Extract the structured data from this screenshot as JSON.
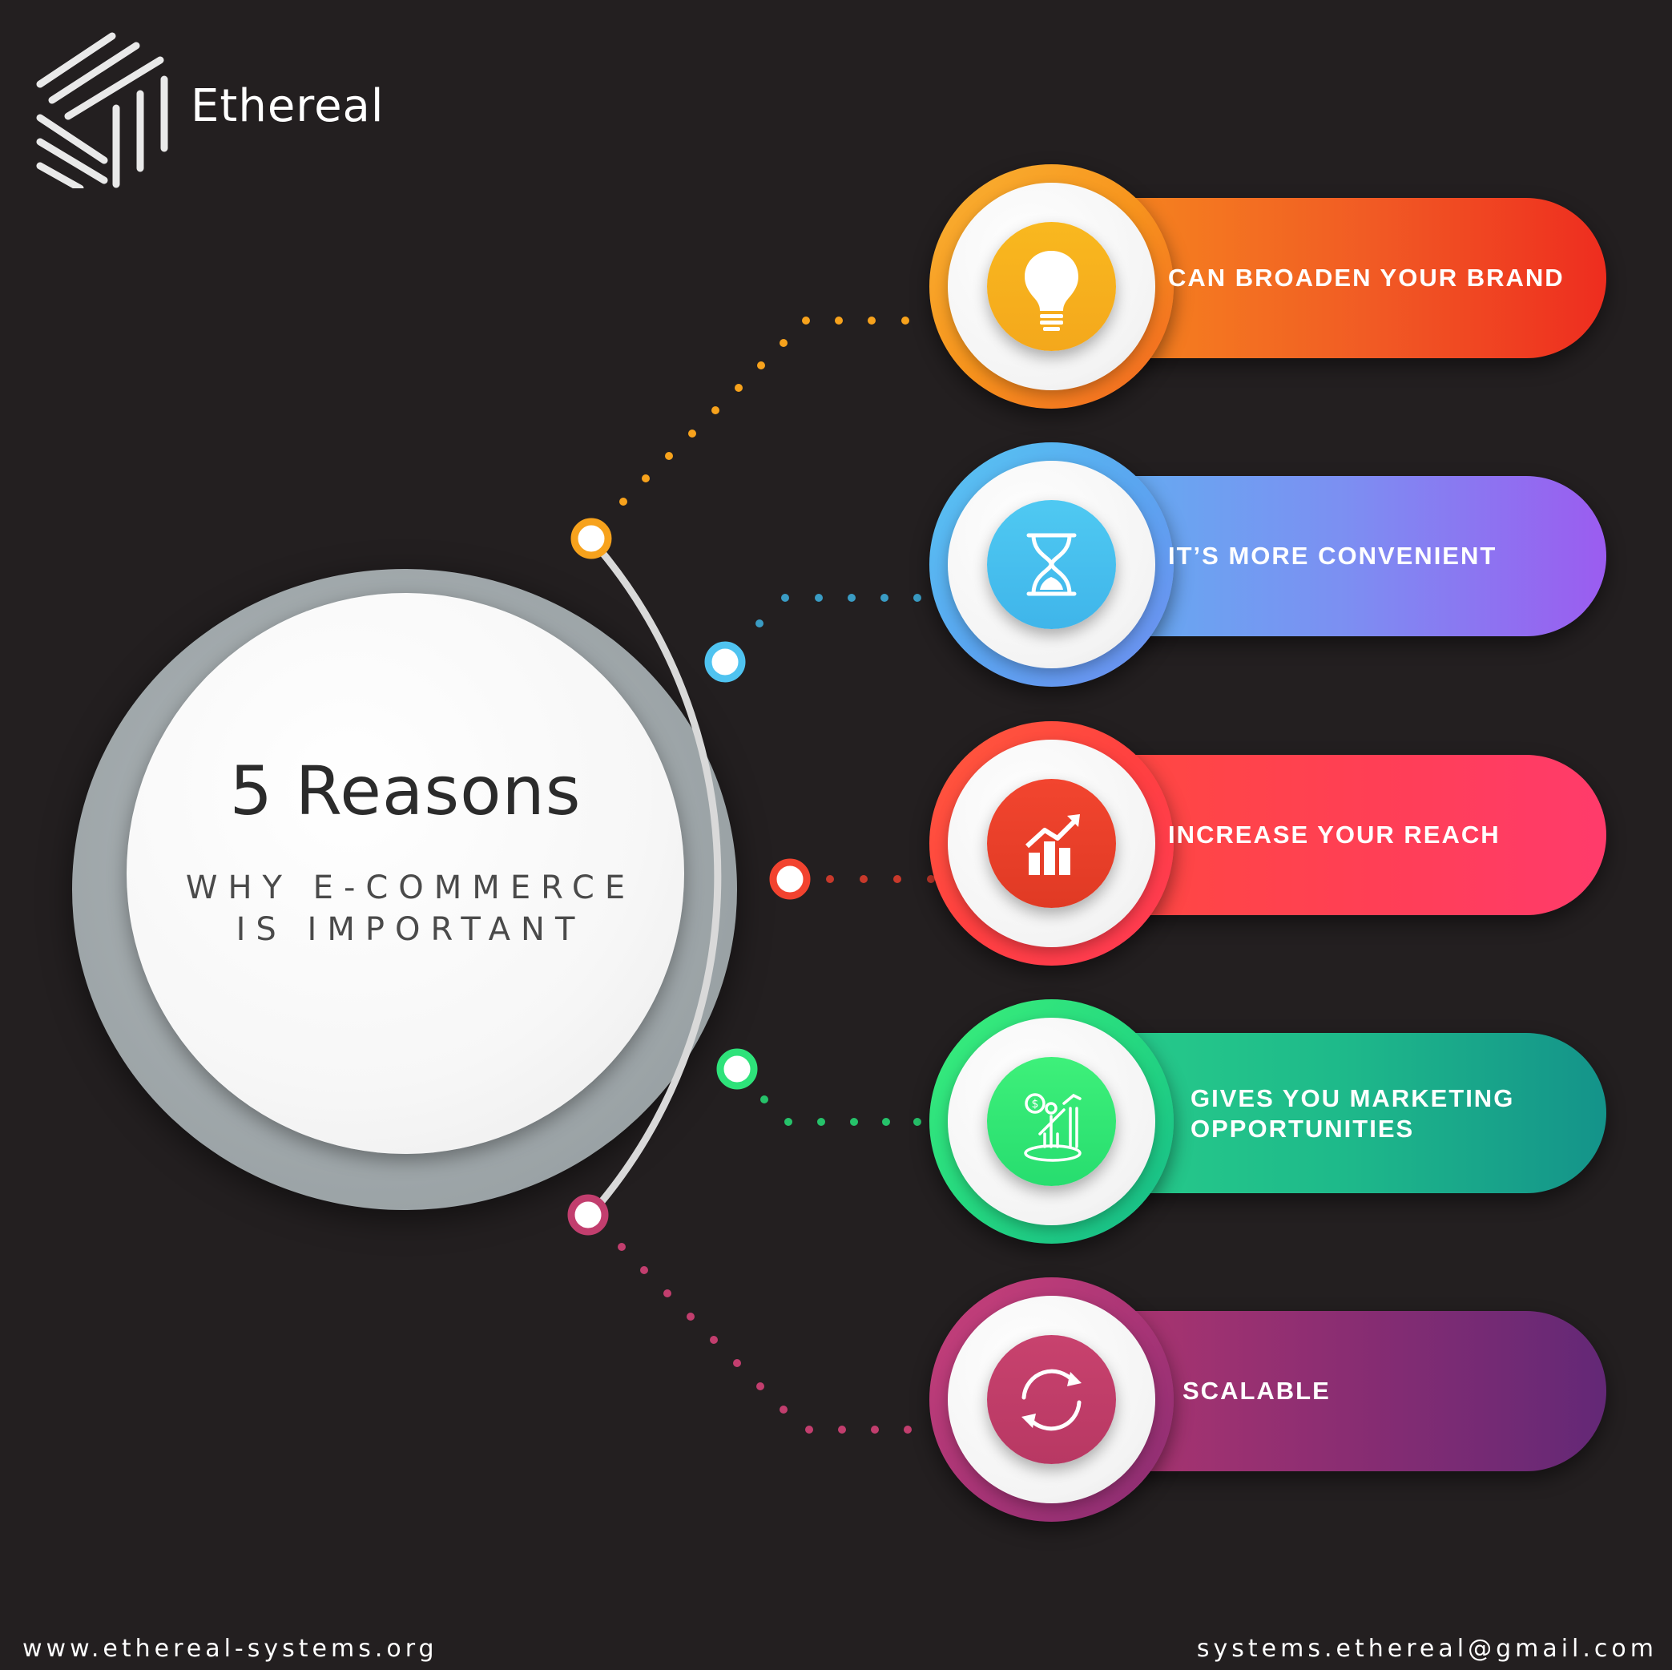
{
  "brand": {
    "name": "Ethereal",
    "logo_icon": "stacked-lines-logo-icon"
  },
  "hub": {
    "title": "5 Reasons",
    "subtitle_line1": "WHY E-COMMERCE",
    "subtitle_line2": "IS IMPORTANT"
  },
  "reasons": [
    {
      "label": "CAN BROADEN YOUR BRAND",
      "icon": "lightbulb-icon",
      "color": "#f7a21c"
    },
    {
      "label": "IT’S MORE CONVENIENT",
      "icon": "hourglass-icon",
      "color": "#4fc3f0"
    },
    {
      "label": "INCREASE YOUR REACH",
      "icon": "growth-chart-icon",
      "color": "#f2432f"
    },
    {
      "label_line1": "GIVES YOU MARKETING",
      "label_line2": "OPPORTUNITIES",
      "icon": "marketing-growth-icon",
      "color": "#2ee27a"
    },
    {
      "label": "SCALABLE",
      "icon": "refresh-cycle-icon",
      "color": "#c23e6e"
    }
  ],
  "footer": {
    "website": "www.ethereal-systems.org",
    "email": "systems.ethereal@gmail.com"
  }
}
